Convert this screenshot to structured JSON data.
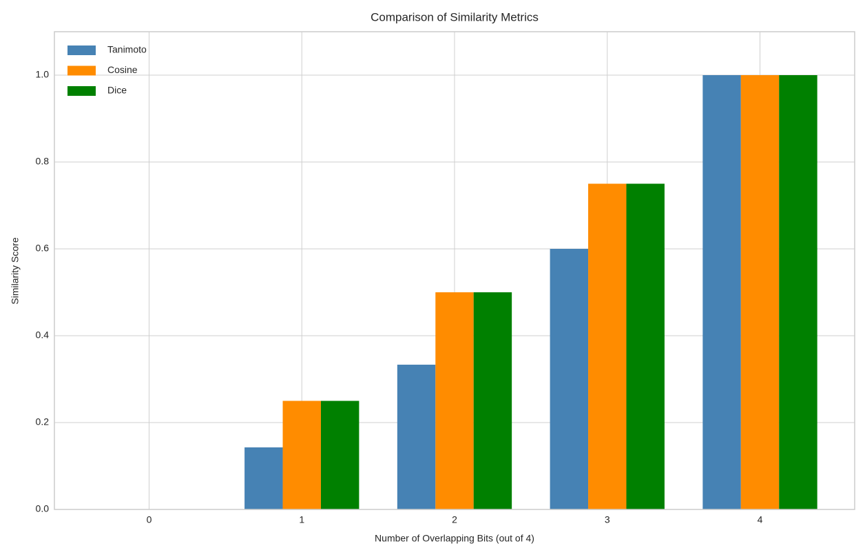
{
  "chart_data": {
    "type": "bar",
    "title": "Comparison of Similarity Metrics",
    "x_label": "Number of Overlapping Bits (out of 4)",
    "y_label": "Similarity Score",
    "x": [
      0,
      1,
      2,
      3,
      4
    ],
    "series": [
      {
        "name": "Tanimoto",
        "color": "#4682b4",
        "values": [
          0,
          0.1429,
          0.3333,
          0.6,
          1.0
        ]
      },
      {
        "name": "Cosine",
        "color": "#ff8c00",
        "values": [
          0,
          0.25,
          0.5,
          0.75,
          1.0
        ]
      },
      {
        "name": "Dice",
        "color": "#008000",
        "values": [
          0,
          0.25,
          0.5,
          0.75,
          1.0
        ]
      }
    ],
    "xlim": [
      -0.62,
      4.62
    ],
    "xticks": [
      0,
      1,
      2,
      3,
      4
    ],
    "ylim": [
      0,
      1.1
    ],
    "yticks": [
      {
        "value": 0,
        "label": "0.0"
      },
      0.2,
      0.4,
      0.6,
      0.8,
      {
        "value": 1,
        "label": "1.0"
      }
    ],
    "grid": true,
    "legend": "upper left"
  }
}
